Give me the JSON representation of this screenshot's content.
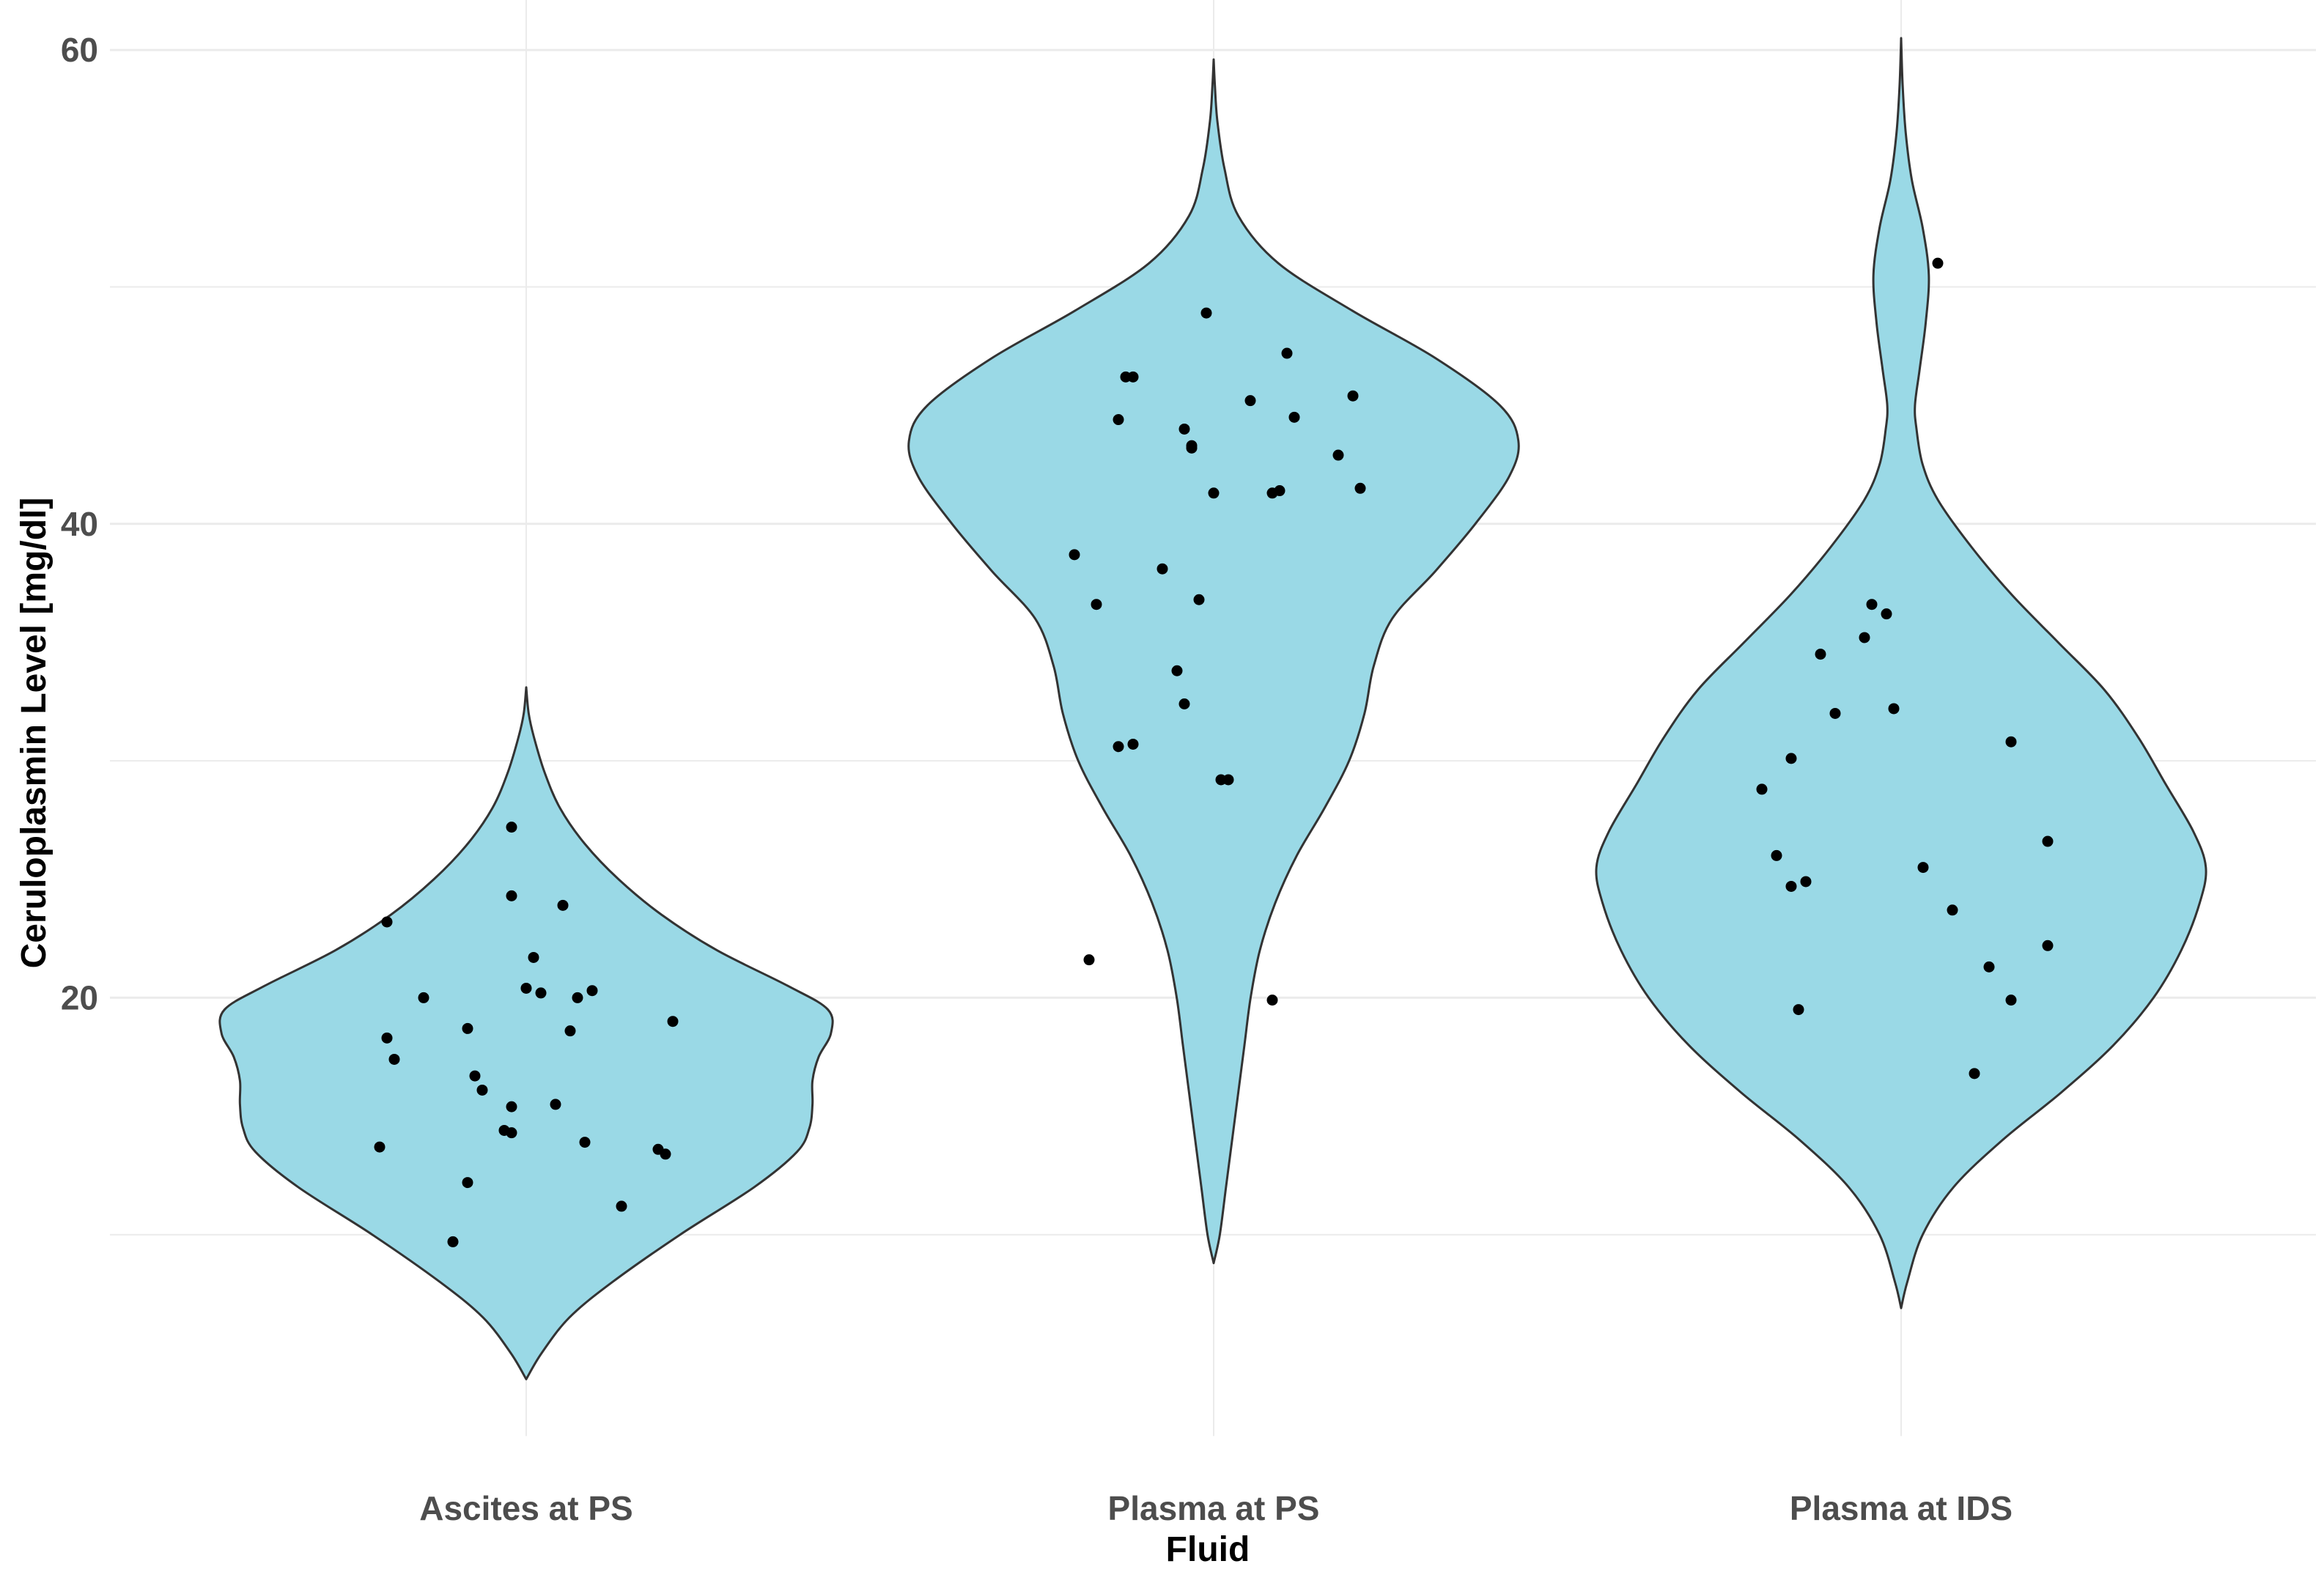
{
  "chart_data": {
    "type": "violin",
    "title": "",
    "xlabel": "Fluid",
    "ylabel": "Ceruloplasmin Level [mg/dl]",
    "ylim": [
      1.5,
      63.5
    ],
    "yticks": [
      20,
      40,
      60
    ],
    "yminor_gridlines": [
      10,
      30,
      50
    ],
    "grid": true,
    "categories": [
      "Ascites at PS",
      "Plasma at PS",
      "Plasma at IDS"
    ],
    "colors": {
      "fill": "#9ad9e6",
      "outline": "#333333",
      "points": "#000000",
      "grid": "#ebebeb"
    },
    "series": [
      {
        "name": "Ascites at PS",
        "range": [
          3.9,
          33.1
        ],
        "density": [
          [
            3.9,
            0.0
          ],
          [
            5.0,
            0.05
          ],
          [
            6.5,
            0.14
          ],
          [
            8.0,
            0.28
          ],
          [
            10.0,
            0.5
          ],
          [
            12.0,
            0.74
          ],
          [
            13.5,
            0.88
          ],
          [
            14.5,
            0.92
          ],
          [
            15.5,
            0.93
          ],
          [
            16.5,
            0.93
          ],
          [
            17.5,
            0.95
          ],
          [
            18.5,
            0.99
          ],
          [
            19.5,
            0.98
          ],
          [
            20.5,
            0.85
          ],
          [
            22.0,
            0.62
          ],
          [
            23.5,
            0.44
          ],
          [
            25.0,
            0.3
          ],
          [
            26.5,
            0.19
          ],
          [
            28.0,
            0.11
          ],
          [
            29.5,
            0.06
          ],
          [
            31.0,
            0.025
          ],
          [
            32.0,
            0.008
          ],
          [
            33.1,
            0.0
          ]
        ],
        "points": [
          [
            -0.19,
            23.2
          ],
          [
            -0.14,
            20.0
          ],
          [
            -0.19,
            18.3
          ],
          [
            -0.18,
            17.4
          ],
          [
            -0.2,
            13.7
          ],
          [
            -0.08,
            18.7
          ],
          [
            -0.07,
            16.7
          ],
          [
            -0.06,
            16.1
          ],
          [
            -0.03,
            14.4
          ],
          [
            -0.08,
            12.2
          ],
          [
            -0.1,
            9.7
          ],
          [
            -0.02,
            24.3
          ],
          [
            0.01,
            21.7
          ],
          [
            0.0,
            20.4
          ],
          [
            0.02,
            20.2
          ],
          [
            -0.02,
            15.4
          ],
          [
            -0.02,
            14.3
          ],
          [
            0.04,
            15.5
          ],
          [
            0.05,
            23.9
          ],
          [
            0.06,
            18.6
          ],
          [
            0.07,
            20.0
          ],
          [
            0.08,
            13.9
          ],
          [
            0.09,
            20.3
          ],
          [
            0.13,
            11.2
          ],
          [
            0.18,
            13.6
          ],
          [
            0.19,
            13.4
          ],
          [
            0.2,
            19.0
          ],
          [
            -0.02,
            27.2
          ]
        ]
      },
      {
        "name": "Plasma at PS",
        "range": [
          8.8,
          59.6
        ],
        "density": [
          [
            8.8,
            0.0
          ],
          [
            10.0,
            0.02
          ],
          [
            12.0,
            0.04
          ],
          [
            14.0,
            0.06
          ],
          [
            16.0,
            0.08
          ],
          [
            18.0,
            0.1
          ],
          [
            20.0,
            0.12
          ],
          [
            22.0,
            0.15
          ],
          [
            24.0,
            0.2
          ],
          [
            26.0,
            0.27
          ],
          [
            28.0,
            0.36
          ],
          [
            30.0,
            0.44
          ],
          [
            32.0,
            0.49
          ],
          [
            34.0,
            0.52
          ],
          [
            36.0,
            0.58
          ],
          [
            38.0,
            0.72
          ],
          [
            40.0,
            0.85
          ],
          [
            42.0,
            0.96
          ],
          [
            43.5,
            0.99
          ],
          [
            45.0,
            0.93
          ],
          [
            47.0,
            0.72
          ],
          [
            49.0,
            0.45
          ],
          [
            51.0,
            0.21
          ],
          [
            53.0,
            0.08
          ],
          [
            55.0,
            0.035
          ],
          [
            57.0,
            0.012
          ],
          [
            58.5,
            0.004
          ],
          [
            59.6,
            0.0
          ]
        ],
        "points": [
          [
            -0.19,
            38.7
          ],
          [
            -0.16,
            36.6
          ],
          [
            -0.13,
            30.6
          ],
          [
            -0.11,
            30.7
          ],
          [
            -0.17,
            21.6
          ],
          [
            -0.13,
            44.4
          ],
          [
            -0.12,
            46.2
          ],
          [
            -0.11,
            46.2
          ],
          [
            -0.07,
            38.1
          ],
          [
            -0.05,
            33.8
          ],
          [
            -0.04,
            32.4
          ],
          [
            -0.03,
            43.2
          ],
          [
            -0.02,
            36.8
          ],
          [
            -0.04,
            44.0
          ],
          [
            -0.03,
            43.3
          ],
          [
            -0.01,
            48.9
          ],
          [
            0.0,
            41.3
          ],
          [
            0.01,
            29.2
          ],
          [
            0.02,
            29.2
          ],
          [
            0.05,
            45.2
          ],
          [
            0.08,
            41.3
          ],
          [
            0.09,
            41.4
          ],
          [
            0.1,
            47.2
          ],
          [
            0.11,
            44.5
          ],
          [
            0.17,
            42.9
          ],
          [
            0.19,
            45.4
          ],
          [
            0.2,
            41.5
          ],
          [
            0.08,
            19.9
          ]
        ]
      },
      {
        "name": "Plasma at IDS",
        "range": [
          6.9,
          60.5
        ],
        "density": [
          [
            6.9,
            0.0
          ],
          [
            8.0,
            0.02
          ],
          [
            10.0,
            0.07
          ],
          [
            12.0,
            0.17
          ],
          [
            14.0,
            0.33
          ],
          [
            16.0,
            0.52
          ],
          [
            18.0,
            0.69
          ],
          [
            20.0,
            0.82
          ],
          [
            22.0,
            0.91
          ],
          [
            24.0,
            0.97
          ],
          [
            25.5,
            0.99
          ],
          [
            27.0,
            0.95
          ],
          [
            29.0,
            0.86
          ],
          [
            31.0,
            0.77
          ],
          [
            33.0,
            0.66
          ],
          [
            35.0,
            0.51
          ],
          [
            37.0,
            0.36
          ],
          [
            39.0,
            0.23
          ],
          [
            41.0,
            0.12
          ],
          [
            42.5,
            0.07
          ],
          [
            44.0,
            0.05
          ],
          [
            45.0,
            0.045
          ],
          [
            46.5,
            0.06
          ],
          [
            48.5,
            0.08
          ],
          [
            50.5,
            0.09
          ],
          [
            52.5,
            0.07
          ],
          [
            54.5,
            0.035
          ],
          [
            56.5,
            0.015
          ],
          [
            58.5,
            0.005
          ],
          [
            60.5,
            0.0
          ]
        ],
        "points": [
          [
            -0.19,
            28.8
          ],
          [
            -0.17,
            26.0
          ],
          [
            -0.15,
            30.1
          ],
          [
            -0.15,
            24.7
          ],
          [
            -0.13,
            24.9
          ],
          [
            -0.14,
            19.5
          ],
          [
            -0.11,
            34.5
          ],
          [
            -0.09,
            32.0
          ],
          [
            -0.05,
            35.2
          ],
          [
            -0.04,
            36.6
          ],
          [
            -0.02,
            36.2
          ],
          [
            -0.01,
            32.2
          ],
          [
            0.03,
            25.5
          ],
          [
            0.07,
            23.7
          ],
          [
            0.1,
            16.8
          ],
          [
            0.12,
            21.3
          ],
          [
            0.15,
            19.9
          ],
          [
            0.15,
            30.8
          ],
          [
            0.2,
            26.6
          ],
          [
            0.2,
            22.2
          ],
          [
            0.05,
            51.0
          ]
        ]
      }
    ]
  }
}
